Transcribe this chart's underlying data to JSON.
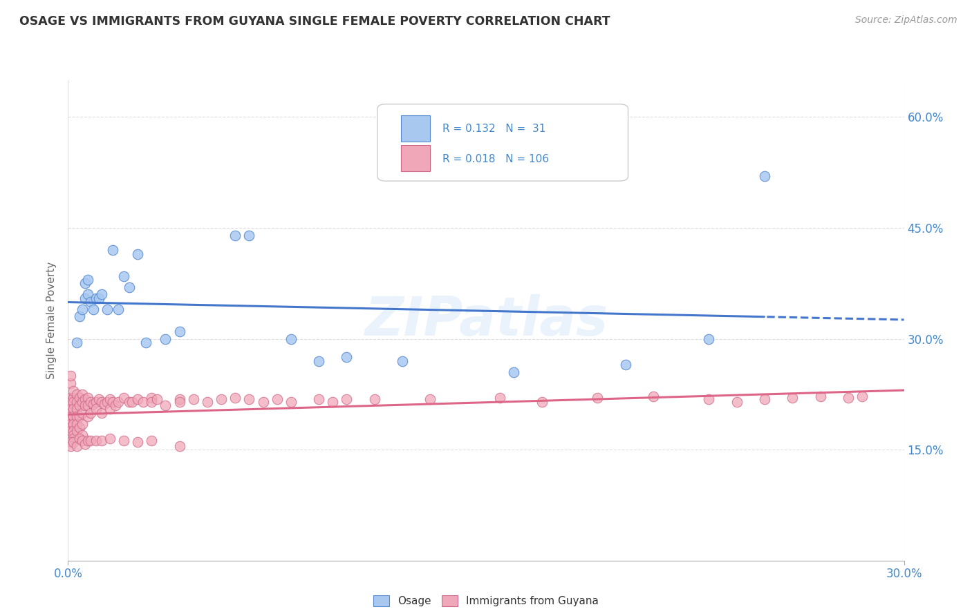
{
  "title": "OSAGE VS IMMIGRANTS FROM GUYANA SINGLE FEMALE POVERTY CORRELATION CHART",
  "source": "Source: ZipAtlas.com",
  "ylabel": "Single Female Poverty",
  "right_yticks": [
    "15.0%",
    "30.0%",
    "45.0%",
    "60.0%"
  ],
  "xlim": [
    0.0,
    0.3
  ],
  "ylim": [
    0.0,
    0.65
  ],
  "legend_r1": "R = 0.132",
  "legend_n1": "N =  31",
  "legend_r2": "R = 0.018",
  "legend_n2": "N = 106",
  "osage_color": "#a8c8f0",
  "guyana_color": "#f0a8b8",
  "osage_edge_color": "#5588cc",
  "guyana_edge_color": "#cc6688",
  "osage_line_color": "#4477cc",
  "guyana_line_color": "#dd6688",
  "title_color": "#333333",
  "source_color": "#999999",
  "axis_label_color": "#4488cc",
  "background_color": "#ffffff",
  "grid_color": "#dddddd",
  "watermark": "ZIPatlas",
  "osage_x": [
    0.003,
    0.004,
    0.005,
    0.006,
    0.006,
    0.007,
    0.007,
    0.008,
    0.009,
    0.01,
    0.011,
    0.012,
    0.014,
    0.016,
    0.018,
    0.02,
    0.022,
    0.025,
    0.028,
    0.035,
    0.04,
    0.06,
    0.065,
    0.08,
    0.09,
    0.1,
    0.12,
    0.16,
    0.2,
    0.23,
    0.25
  ],
  "osage_y": [
    0.295,
    0.33,
    0.34,
    0.375,
    0.355,
    0.38,
    0.36,
    0.35,
    0.34,
    0.355,
    0.355,
    0.36,
    0.34,
    0.42,
    0.34,
    0.385,
    0.37,
    0.415,
    0.295,
    0.3,
    0.31,
    0.44,
    0.44,
    0.3,
    0.27,
    0.275,
    0.27,
    0.255,
    0.265,
    0.3,
    0.52
  ],
  "guyana_x": [
    0.001,
    0.001,
    0.001,
    0.001,
    0.001,
    0.001,
    0.001,
    0.001,
    0.001,
    0.001,
    0.001,
    0.002,
    0.002,
    0.002,
    0.002,
    0.002,
    0.002,
    0.002,
    0.002,
    0.002,
    0.003,
    0.003,
    0.003,
    0.003,
    0.003,
    0.003,
    0.004,
    0.004,
    0.004,
    0.004,
    0.005,
    0.005,
    0.005,
    0.005,
    0.005,
    0.006,
    0.006,
    0.007,
    0.007,
    0.007,
    0.008,
    0.008,
    0.009,
    0.01,
    0.01,
    0.011,
    0.012,
    0.012,
    0.013,
    0.014,
    0.015,
    0.015,
    0.016,
    0.017,
    0.018,
    0.02,
    0.022,
    0.023,
    0.025,
    0.027,
    0.03,
    0.03,
    0.032,
    0.035,
    0.04,
    0.04,
    0.045,
    0.05,
    0.055,
    0.06,
    0.065,
    0.07,
    0.075,
    0.08,
    0.09,
    0.095,
    0.1,
    0.11,
    0.13,
    0.155,
    0.17,
    0.19,
    0.21,
    0.23,
    0.24,
    0.25,
    0.26,
    0.27,
    0.28,
    0.285,
    0.001,
    0.001,
    0.002,
    0.003,
    0.004,
    0.005,
    0.006,
    0.007,
    0.008,
    0.01,
    0.012,
    0.015,
    0.02,
    0.025,
    0.03,
    0.04
  ],
  "guyana_y": [
    0.22,
    0.215,
    0.205,
    0.2,
    0.195,
    0.19,
    0.185,
    0.18,
    0.175,
    0.24,
    0.25,
    0.22,
    0.215,
    0.205,
    0.195,
    0.185,
    0.23,
    0.175,
    0.17,
    0.165,
    0.225,
    0.215,
    0.205,
    0.195,
    0.185,
    0.175,
    0.22,
    0.21,
    0.195,
    0.18,
    0.225,
    0.215,
    0.2,
    0.185,
    0.17,
    0.218,
    0.21,
    0.22,
    0.21,
    0.195,
    0.215,
    0.2,
    0.212,
    0.215,
    0.205,
    0.218,
    0.215,
    0.2,
    0.212,
    0.215,
    0.218,
    0.205,
    0.215,
    0.21,
    0.215,
    0.22,
    0.215,
    0.215,
    0.218,
    0.215,
    0.22,
    0.215,
    0.218,
    0.21,
    0.218,
    0.215,
    0.218,
    0.215,
    0.218,
    0.22,
    0.218,
    0.215,
    0.218,
    0.215,
    0.218,
    0.215,
    0.218,
    0.218,
    0.218,
    0.22,
    0.215,
    0.22,
    0.222,
    0.218,
    0.215,
    0.218,
    0.22,
    0.222,
    0.22,
    0.222,
    0.16,
    0.155,
    0.16,
    0.155,
    0.165,
    0.162,
    0.158,
    0.162,
    0.162,
    0.162,
    0.162,
    0.165,
    0.162,
    0.16,
    0.162,
    0.155
  ]
}
